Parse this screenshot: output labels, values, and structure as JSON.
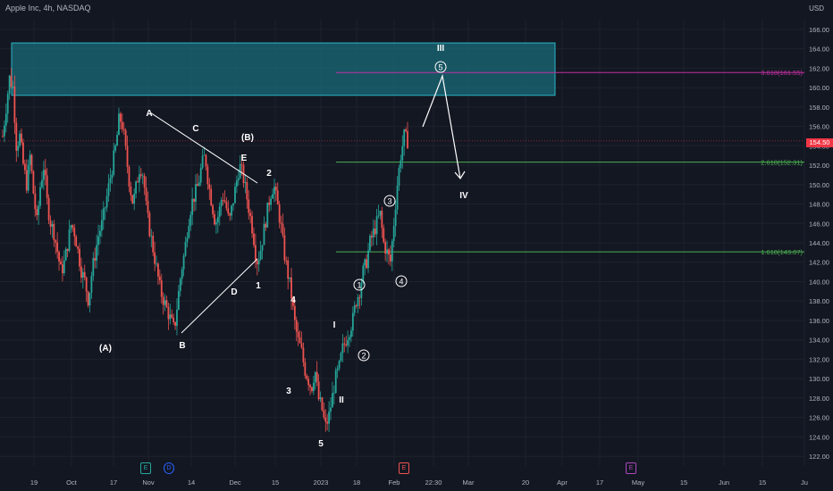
{
  "header": {
    "title": "Apple Inc, 4h, NASDAQ",
    "currency": "USD"
  },
  "last_price": "154.50",
  "chart_data": {
    "type": "candlestick",
    "y_axis": {
      "ticks": [
        "166.00",
        "164.00",
        "162.00",
        "160.00",
        "158.00",
        "156.00",
        "154.00",
        "152.00",
        "150.00",
        "148.00",
        "146.00",
        "144.00",
        "142.00",
        "140.00",
        "138.00",
        "136.00",
        "134.00",
        "132.00",
        "130.00",
        "128.00",
        "126.00",
        "124.00",
        "122.00"
      ],
      "ylim": [
        121,
        167
      ]
    },
    "x_axis": {
      "ticks": [
        "19",
        "Oct",
        "17",
        "Nov",
        "14",
        "Dec",
        "15",
        "2023",
        "18",
        "Feb",
        "22:30",
        "Mar",
        "20",
        "Apr",
        "17",
        "May",
        "15",
        "Jun",
        "15",
        "Ju"
      ]
    },
    "price_path": [
      155,
      158,
      161,
      160,
      154,
      155,
      152,
      150,
      153,
      149,
      146,
      150,
      152,
      148,
      146,
      145,
      143,
      141,
      142,
      144,
      146,
      145,
      143,
      141,
      140,
      138,
      141,
      143,
      145,
      146,
      148,
      150,
      152,
      154,
      157,
      156,
      153,
      150,
      148,
      150,
      152,
      151,
      147,
      145,
      143,
      141,
      139,
      138,
      137,
      136,
      135,
      138,
      141,
      143,
      146,
      148,
      149,
      150,
      152,
      153,
      150,
      148,
      146,
      147,
      149,
      148,
      146,
      148,
      150,
      152,
      151,
      149,
      147,
      145,
      142,
      143,
      145,
      147,
      149,
      150,
      148,
      146,
      143,
      141,
      139,
      136,
      134,
      133,
      131,
      130,
      129,
      131,
      128,
      127,
      125,
      126,
      128,
      130,
      131,
      133,
      134,
      135,
      136,
      138,
      139,
      141,
      142,
      144,
      145,
      146,
      147,
      144,
      143,
      142,
      146,
      150,
      153,
      155,
      154.5
    ],
    "resistance_zone": {
      "from": 159.2,
      "to": 164.6
    },
    "fibonacci_levels": [
      {
        "label": "3.618(161.55)",
        "value": 161.55,
        "color": "#c030a0"
      },
      {
        "label": "2.618(152.31)",
        "value": 152.31,
        "color": "#4caf50"
      },
      {
        "label": "1.618(143.07)",
        "value": 143.07,
        "color": "#4caf50"
      }
    ],
    "wave_labels": [
      "(A)",
      "A",
      "B",
      "C",
      "D",
      "E",
      "(B)",
      "1",
      "2",
      "3",
      "4",
      "5",
      "I",
      "II",
      "III",
      "IV",
      "1",
      "2",
      "3",
      "4",
      "5"
    ]
  },
  "colors": {
    "bg": "#131722",
    "up": "#26a69a",
    "down": "#ef5350",
    "grid": "#1e222d",
    "axis_text": "#b2b5be",
    "zone": "#1a6b78"
  }
}
